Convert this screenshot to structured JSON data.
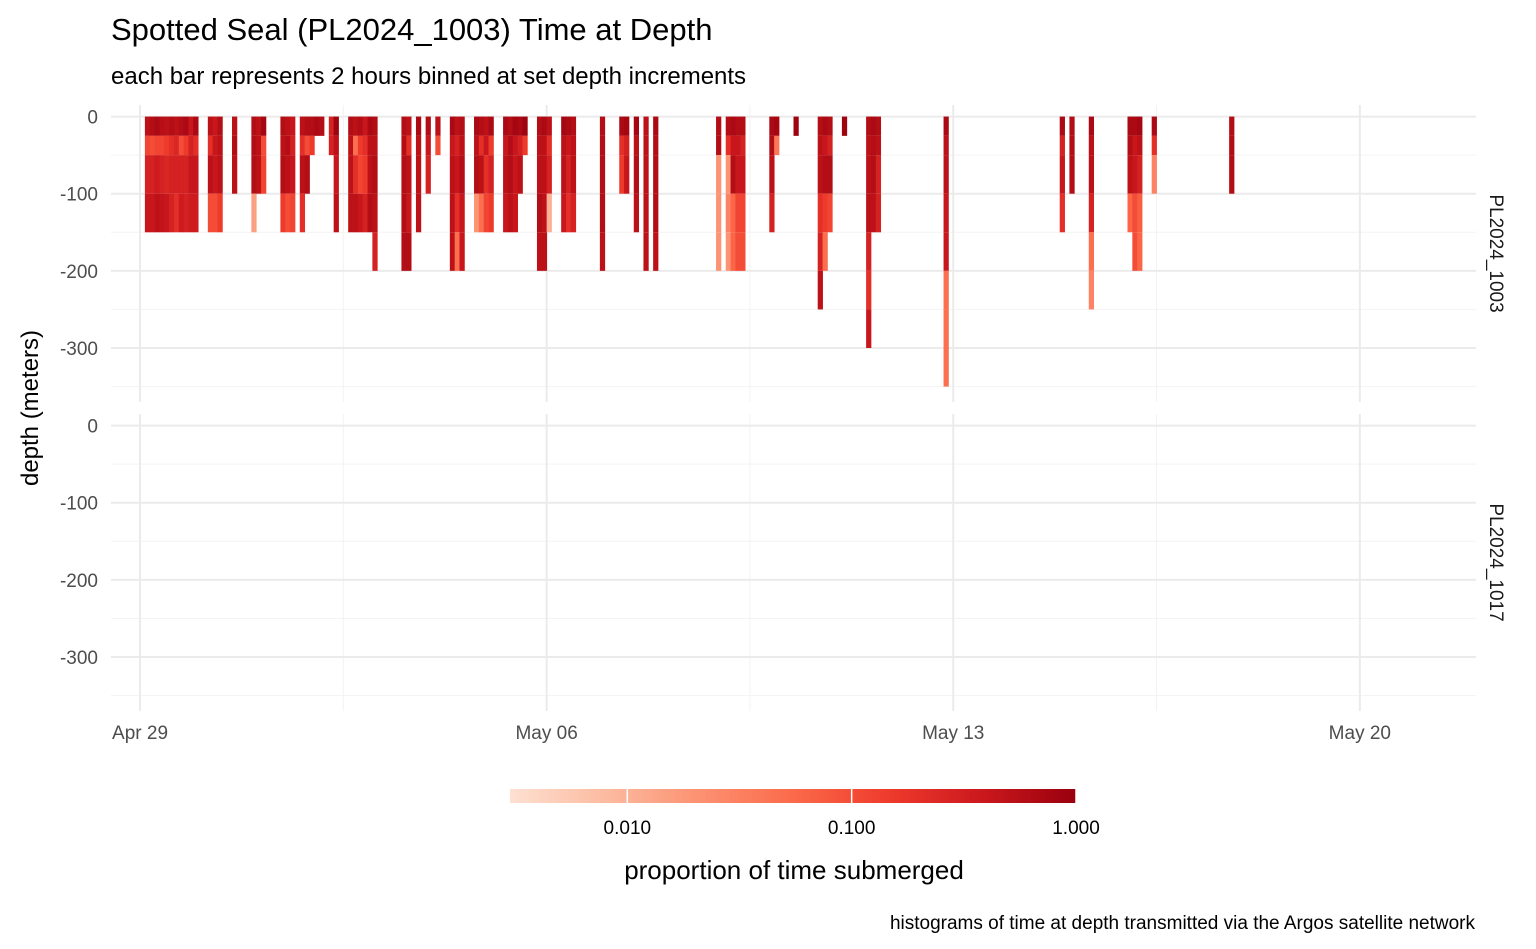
{
  "chart_data": {
    "type": "heatmap",
    "title": "Spotted Seal (PL2024_1003) Time at Depth",
    "subtitle": "each bar represents 2 hours binned at set depth increments",
    "caption": "histograms of time at depth transmitted via the Argos satellite network",
    "ylabel": "depth (meters)",
    "xlabel": "",
    "x_axis": {
      "type": "date",
      "range": [
        "2024-04-28T12:00",
        "2024-05-22T00:00"
      ],
      "ticks": [
        "2024-04-29",
        "2024-05-06",
        "2024-05-13",
        "2024-05-20"
      ],
      "tick_labels": [
        "Apr 29",
        "May 06",
        "May 13",
        "May 20"
      ]
    },
    "y_axis": {
      "range": [
        -370,
        15
      ],
      "ticks": [
        0,
        -100,
        -200,
        -300
      ],
      "tick_labels": [
        "0",
        "-100",
        "-200",
        "-300"
      ]
    },
    "grid": true,
    "depth_bins": [
      [
        0,
        -25
      ],
      [
        -25,
        -50
      ],
      [
        -50,
        -100
      ],
      [
        -100,
        -150
      ],
      [
        -150,
        -200
      ],
      [
        -200,
        -250
      ],
      [
        -250,
        -300
      ],
      [
        -300,
        -350
      ]
    ],
    "legend": {
      "title": "proportion of time submerged",
      "scale": "log10",
      "range": [
        0.003,
        1.0
      ],
      "ticks": [
        0.01,
        0.1,
        1.0
      ],
      "tick_labels": [
        "0.010",
        "0.100",
        "1.000"
      ],
      "placement": "bottom",
      "colors": [
        "#fee0d2",
        "#fcbba1",
        "#fc9272",
        "#fb6a4a",
        "#ef3b2c",
        "#cb181d",
        "#99000d"
      ]
    },
    "panels": [
      {
        "name": "PL2024_1003",
        "bars": [
          {
            "t": "2024-04-29T02:00",
            "p": [
              0.5,
              0.12,
              0.3,
              0.4
            ]
          },
          {
            "t": "2024-04-29T04:00",
            "p": [
              0.6,
              0.1,
              0.3,
              0.4
            ]
          },
          {
            "t": "2024-04-29T06:00",
            "p": [
              0.7,
              0.12,
              0.35,
              0.5
            ]
          },
          {
            "t": "2024-04-29T08:00",
            "p": [
              0.55,
              0.12,
              0.3,
              0.45
            ]
          },
          {
            "t": "2024-04-29T10:00",
            "p": [
              0.5,
              0.15,
              0.25,
              0.4
            ]
          },
          {
            "t": "2024-04-29T12:00",
            "p": [
              0.6,
              0.2,
              0.3,
              0.3
            ]
          },
          {
            "t": "2024-04-29T14:00",
            "p": [
              0.5,
              0.25,
              0.3,
              0.2
            ]
          },
          {
            "t": "2024-04-29T16:00",
            "p": [
              0.6,
              0.1,
              0.3,
              0.35
            ]
          },
          {
            "t": "2024-04-29T18:00",
            "p": [
              0.7,
              0.15,
              0.3,
              0.3
            ]
          },
          {
            "t": "2024-04-29T20:00",
            "p": [
              0.4,
              0.3,
              0.4,
              0.35
            ]
          },
          {
            "t": "2024-04-29T22:00",
            "p": [
              0.7,
              0.2,
              0.4,
              0.35
            ]
          },
          {
            "t": "2024-04-30T04:00",
            "p": [
              0.5,
              0.2,
              0.5,
              0.1
            ]
          },
          {
            "t": "2024-04-30T06:00",
            "p": [
              0.4,
              0.4,
              0.4,
              0.1
            ]
          },
          {
            "t": "2024-04-30T08:00",
            "p": [
              0.6,
              0.5,
              0.5,
              0.15
            ]
          },
          {
            "t": "2024-04-30T14:00",
            "p": [
              0.5,
              0.6,
              0.5
            ]
          },
          {
            "t": "2024-04-30T22:00",
            "p": [
              0.6,
              0.6,
              0.6,
              0.015
            ]
          },
          {
            "t": "2024-05-01T00:00",
            "p": [
              0.5,
              0.5,
              0.5
            ]
          },
          {
            "t": "2024-05-01T02:00",
            "p": [
              0.8,
              0.1,
              0.12
            ]
          },
          {
            "t": "2024-05-01T10:00",
            "p": [
              0.6,
              0.5,
              0.6,
              0.15
            ]
          },
          {
            "t": "2024-05-01T12:00",
            "p": [
              0.5,
              0.6,
              0.5,
              0.1
            ]
          },
          {
            "t": "2024-05-01T14:00",
            "p": [
              0.4,
              0.3,
              0.4,
              0.12
            ]
          },
          {
            "t": "2024-05-01T18:00",
            "p": [
              0.5,
              0.2,
              0.5,
              0.2
            ]
          },
          {
            "t": "2024-05-01T20:00",
            "p": [
              0.6,
              0.1,
              0.6
            ]
          },
          {
            "t": "2024-05-01T22:00",
            "p": [
              0.6,
              0.15
            ]
          },
          {
            "t": "2024-05-02T00:00",
            "p": [
              0.7
            ]
          },
          {
            "t": "2024-05-02T02:00",
            "p": [
              0.6
            ]
          },
          {
            "t": "2024-05-02T06:00",
            "p": [
              0.3,
              0.3
            ]
          },
          {
            "t": "2024-05-02T08:00",
            "p": [
              0.9,
              0.5,
              0.4,
              0.5
            ]
          },
          {
            "t": "2024-05-02T14:00",
            "p": [
              0.6,
              0.5,
              0.5,
              0.5
            ]
          },
          {
            "t": "2024-05-02T16:00",
            "p": [
              0.5,
              0.05,
              0.2,
              0.5
            ]
          },
          {
            "t": "2024-05-02T18:00",
            "p": [
              0.6,
              0.15,
              0.12,
              0.4
            ]
          },
          {
            "t": "2024-05-02T20:00",
            "p": [
              0.4,
              0.2,
              0.15,
              0.3
            ]
          },
          {
            "t": "2024-05-02T22:00",
            "p": [
              0.7,
              0.5,
              0.5,
              0.6
            ]
          },
          {
            "t": "2024-05-03T00:00",
            "p": [
              0.6,
              0.5,
              0.6,
              0.5,
              0.3
            ]
          },
          {
            "t": "2024-05-03T12:00",
            "p": [
              0.6,
              0.6,
              0.6,
              0.6,
              0.6
            ]
          },
          {
            "t": "2024-05-03T14:00",
            "p": [
              0.5,
              0.2,
              0.5,
              0.4,
              0.6
            ]
          },
          {
            "t": "2024-05-03T18:00",
            "p": [
              0.7,
              0.5,
              0.5,
              0.5
            ]
          },
          {
            "t": "2024-05-03T22:00",
            "p": [
              0.6,
              0.4,
              0.3
            ]
          },
          {
            "t": "2024-05-04T02:00",
            "p": [
              0.5,
              0.1
            ]
          },
          {
            "t": "2024-05-04T08:00",
            "p": [
              0.7,
              0.4,
              0.5,
              0.5,
              0.5
            ]
          },
          {
            "t": "2024-05-04T10:00",
            "p": [
              0.5,
              0.3,
              0.4,
              0.2,
              0.05
            ]
          },
          {
            "t": "2024-05-04T12:00",
            "p": [
              0.6,
              0.5,
              0.6,
              0.4,
              0.4
            ]
          },
          {
            "t": "2024-05-04T18:00",
            "p": [
              0.7,
              0.5,
              0.6,
              0.02
            ]
          },
          {
            "t": "2024-05-04T20:00",
            "p": [
              0.6,
              0.2,
              0.5,
              0.05
            ]
          },
          {
            "t": "2024-05-04T22:00",
            "p": [
              0.5,
              0.4,
              0.2,
              0.12
            ]
          },
          {
            "t": "2024-05-05T00:00",
            "p": [
              0.7,
              0.15,
              0.3,
              0.15
            ]
          },
          {
            "t": "2024-05-05T06:00",
            "p": [
              0.7,
              0.4,
              0.5,
              0.4
            ]
          },
          {
            "t": "2024-05-05T08:00",
            "p": [
              0.6,
              0.6,
              0.6,
              0.5
            ]
          },
          {
            "t": "2024-05-05T10:00",
            "p": [
              0.8,
              0.4,
              0.4,
              0.4
            ]
          },
          {
            "t": "2024-05-05T12:00",
            "p": [
              0.7,
              0.3,
              0.5
            ]
          },
          {
            "t": "2024-05-05T14:00",
            "p": [
              0.9,
              0.15
            ]
          },
          {
            "t": "2024-05-05T20:00",
            "p": [
              0.6,
              0.5,
              0.5,
              0.6,
              0.5
            ]
          },
          {
            "t": "2024-05-05T22:00",
            "p": [
              0.7,
              0.5,
              0.5,
              0.5,
              0.5
            ]
          },
          {
            "t": "2024-05-06T00:00",
            "p": [
              0.5,
              0.2,
              0.3,
              0.01
            ]
          },
          {
            "t": "2024-05-06T06:00",
            "p": [
              0.8,
              0.5,
              0.5,
              0.4
            ]
          },
          {
            "t": "2024-05-06T08:00",
            "p": [
              0.7,
              0.4,
              0.3,
              0.2
            ]
          },
          {
            "t": "2024-05-06T10:00",
            "p": [
              0.6,
              0.5,
              0.5,
              0.3
            ]
          },
          {
            "t": "2024-05-06T22:00",
            "p": [
              0.6,
              0.6,
              0.6,
              0.6,
              0.5
            ]
          },
          {
            "t": "2024-05-07T06:00",
            "p": [
              0.7,
              0.2,
              0.15
            ]
          },
          {
            "t": "2024-05-07T08:00",
            "p": [
              0.8,
              0.3,
              0.4
            ]
          },
          {
            "t": "2024-05-07T12:00",
            "p": [
              0.8,
              0.5,
              0.6,
              0.5
            ]
          },
          {
            "t": "2024-05-07T16:00",
            "p": [
              0.5,
              0.5,
              0.5,
              0.5,
              0.5
            ]
          },
          {
            "t": "2024-05-07T20:00",
            "p": [
              0.7,
              0.6,
              0.6,
              0.6,
              0.5
            ]
          },
          {
            "t": "2024-05-08T22:00",
            "p": [
              0.6,
              0.6,
              0.02,
              0.02,
              0.02
            ]
          },
          {
            "t": "2024-05-09T02:00",
            "p": [
              0.6,
              0.2,
              0.02,
              0.03,
              0.02
            ]
          },
          {
            "t": "2024-05-09T04:00",
            "p": [
              0.7,
              0.4,
              0.6,
              0.06,
              0.06
            ]
          },
          {
            "t": "2024-05-09T06:00",
            "p": [
              0.6,
              0.4,
              0.4,
              0.12,
              0.1
            ]
          },
          {
            "t": "2024-05-09T08:00",
            "p": [
              0.6,
              0.3,
              0.4,
              0.12,
              0.1
            ]
          },
          {
            "t": "2024-05-09T20:00",
            "p": [
              0.7,
              0.6,
              0.5,
              0.3
            ]
          },
          {
            "t": "2024-05-09T22:00",
            "p": [
              0.8,
              0.04
            ]
          },
          {
            "t": "2024-05-10T06:00",
            "p": [
              0.9
            ]
          },
          {
            "t": "2024-05-10T16:00",
            "p": [
              0.6,
              0.5,
              0.5,
              0.2,
              0.3,
              0.5
            ]
          },
          {
            "t": "2024-05-10T18:00",
            "p": [
              0.7,
              0.4,
              0.6,
              0.15,
              0.05
            ]
          },
          {
            "t": "2024-05-10T20:00",
            "p": [
              0.6,
              0.3,
              0.6,
              0.12
            ]
          },
          {
            "t": "2024-05-11T02:00",
            "p": [
              0.9
            ]
          },
          {
            "t": "2024-05-11T12:00",
            "p": [
              0.6,
              0.5,
              0.5,
              0.5,
              0.3,
              0.2,
              0.4
            ]
          },
          {
            "t": "2024-05-11T14:00",
            "p": [
              0.7,
              0.6,
              0.6,
              0.5
            ]
          },
          {
            "t": "2024-05-11T16:00",
            "p": [
              0.6,
              0.5,
              0.3,
              0.3
            ]
          },
          {
            "t": "2024-05-12T20:00",
            "p": [
              0.7,
              0.5,
              0.5,
              0.4,
              0.4,
              0.05,
              0.05,
              0.05
            ]
          },
          {
            "t": "2024-05-14T20:00",
            "p": [
              0.7,
              0.3,
              0.4,
              0.2
            ]
          },
          {
            "t": "2024-05-15T00:00",
            "p": [
              0.6,
              0.6,
              0.6
            ]
          },
          {
            "t": "2024-05-15T08:00",
            "p": [
              0.7,
              0.5,
              0.5,
              0.3,
              0.05,
              0.03
            ]
          },
          {
            "t": "2024-05-16T00:00",
            "p": [
              0.7,
              0.6,
              0.5,
              0.06
            ]
          },
          {
            "t": "2024-05-16T02:00",
            "p": [
              0.7,
              0.4,
              0.4,
              0.1,
              0.1
            ]
          },
          {
            "t": "2024-05-16T04:00",
            "p": [
              0.8,
              0.5,
              0.3,
              0.07,
              0.06
            ]
          },
          {
            "t": "2024-05-16T10:00",
            "p": [
              0.7,
              0.2,
              0.03
            ]
          },
          {
            "t": "2024-05-17T18:00",
            "p": [
              0.6,
              0.6,
              0.6
            ]
          }
        ]
      },
      {
        "name": "PL2024_1017",
        "bars": []
      }
    ]
  }
}
